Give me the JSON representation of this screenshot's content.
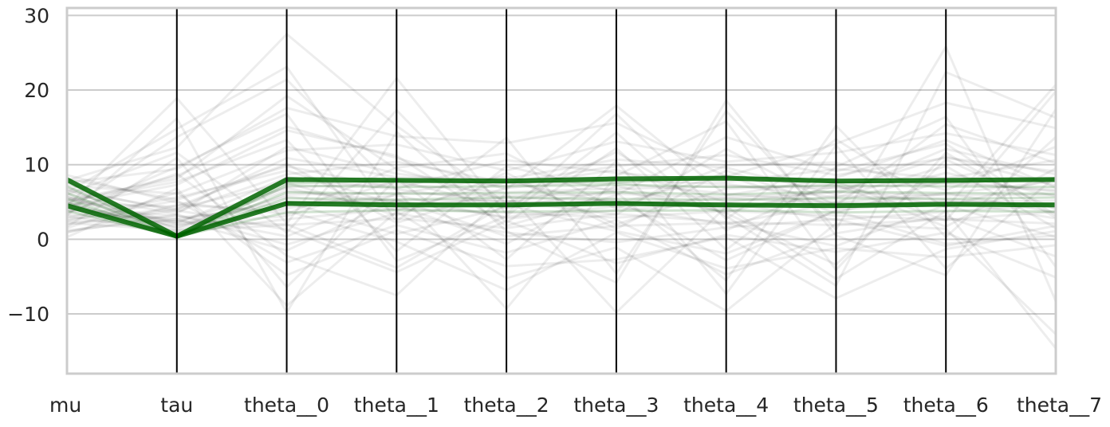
{
  "chart_data": {
    "type": "line",
    "subtype": "parallel-coordinates",
    "title": "",
    "xlabel": "",
    "ylabel": "",
    "categories": [
      "mu",
      "tau",
      "theta__0",
      "theta__1",
      "theta__2",
      "theta__3",
      "theta__4",
      "theta__5",
      "theta__6",
      "theta__7"
    ],
    "ylim": [
      -18,
      31
    ],
    "yticks": [
      -10,
      0,
      10,
      20,
      30
    ],
    "ytick_labels": [
      "−10",
      "0",
      "10",
      "20",
      "30"
    ],
    "grid": true,
    "legend": "none",
    "colors": {
      "background_lines": "#000000",
      "highlight_lines": "#006400",
      "grid": "#cccccc",
      "axis_lines": "#000000",
      "frame": "#cccccc",
      "text": "#262626"
    },
    "background_series": {
      "description": "many faint black traces",
      "values": [
        [
          4.2,
          1.8,
          6.5,
          5.1,
          3.0,
          4.4,
          2.0,
          4.9,
          6.2,
          3.6
        ],
        [
          6.1,
          3.4,
          12.4,
          8.8,
          7.1,
          9.3,
          5.0,
          6.4,
          11.1,
          7.2
        ],
        [
          2.5,
          5.2,
          -3.1,
          1.9,
          -1.8,
          2.6,
          -4.7,
          0.8,
          3.1,
          -2.3
        ],
        [
          5.3,
          8.1,
          19.2,
          9.4,
          5.2,
          3.3,
          12.1,
          4.5,
          15.4,
          10.2
        ],
        [
          3.1,
          0.9,
          2.7,
          4.1,
          3.6,
          2.9,
          3.8,
          3.2,
          2.6,
          3.7
        ],
        [
          7.9,
          12.3,
          27.5,
          15.2,
          4.8,
          11.7,
          3.1,
          -6.2,
          22.4,
          16.3
        ],
        [
          1.2,
          2.7,
          -1.5,
          5.3,
          0.4,
          1.8,
          2.2,
          -0.9,
          4.6,
          0.3
        ],
        [
          4.8,
          4.4,
          10.1,
          2.2,
          6.9,
          8.0,
          7.4,
          5.6,
          9.8,
          1.5
        ],
        [
          0.3,
          6.8,
          -8.9,
          3.7,
          -5.2,
          -1.1,
          -9.6,
          2.1,
          1.4,
          -12.7
        ],
        [
          5.6,
          2.1,
          8.3,
          6.7,
          4.9,
          7.6,
          6.1,
          5.0,
          8.9,
          5.8
        ],
        [
          3.4,
          9.7,
          16.8,
          -2.9,
          3.1,
          14.3,
          1.2,
          7.7,
          2.5,
          19.8
        ],
        [
          6.7,
          1.4,
          7.0,
          7.4,
          6.3,
          6.8,
          7.1,
          6.9,
          7.5,
          6.6
        ],
        [
          2.0,
          3.9,
          1.3,
          -4.4,
          2.5,
          -3.2,
          0.6,
          -1.7,
          0.9,
          -5.1
        ],
        [
          4.5,
          7.3,
          14.6,
          11.2,
          1.8,
          5.9,
          13.7,
          9.1,
          12.8,
          3.2
        ],
        [
          8.6,
          4.9,
          3.4,
          9.6,
          11.5,
          4.1,
          9.9,
          10.3,
          6.6,
          12.4
        ],
        [
          3.8,
          2.6,
          5.0,
          0.7,
          4.3,
          5.4,
          -2.8,
          3.9,
          5.2,
          2.8
        ],
        [
          1.7,
          10.9,
          -6.4,
          8.1,
          -2.7,
          10.5,
          -7.3,
          12.6,
          -3.9,
          8.4
        ],
        [
          5.0,
          0.7,
          4.9,
          5.3,
          5.1,
          4.7,
          5.5,
          4.8,
          5.0,
          5.2
        ],
        [
          6.3,
          14.8,
          23.1,
          2.4,
          13.6,
          -4.6,
          17.2,
          1.3,
          25.8,
          -8.3
        ],
        [
          2.9,
          5.6,
          9.2,
          4.6,
          -0.6,
          7.2,
          3.5,
          -3.4,
          10.7,
          4.0
        ],
        [
          4.0,
          3.2,
          0.4,
          6.1,
          8.4,
          2.0,
          6.8,
          7.3,
          1.7,
          9.5
        ],
        [
          7.2,
          6.1,
          11.9,
          12.7,
          9.2,
          13.1,
          10.4,
          11.6,
          14.2,
          11.3
        ],
        [
          3.6,
          8.8,
          -2.2,
          -7.5,
          6.2,
          -9.8,
          4.4,
          -5.3,
          3.8,
          -14.6
        ],
        [
          5.8,
          2.3,
          6.9,
          3.9,
          7.7,
          4.8,
          8.6,
          3.5,
          7.9,
          6.4
        ],
        [
          0.9,
          4.6,
          3.8,
          -0.3,
          -6.8,
          0.9,
          -3.9,
          -1.2,
          -2.4,
          -0.8
        ],
        [
          4.4,
          18.9,
          2.1,
          21.6,
          3.4,
          16.8,
          2.7,
          13.4,
          4.2,
          20.7
        ],
        [
          6.9,
          3.7,
          8.7,
          10.4,
          7.6,
          9.8,
          11.3,
          8.6,
          10.9,
          9.1
        ],
        [
          2.2,
          1.2,
          1.9,
          2.8,
          1.5,
          3.4,
          2.3,
          1.9,
          2.7,
          2.1
        ],
        [
          5.1,
          7.7,
          13.3,
          -1.6,
          9.8,
          6.3,
          -5.5,
          15.2,
          0.3,
          13.7
        ],
        [
          3.3,
          2.9,
          4.2,
          5.9,
          2.8,
          3.9,
          4.9,
          2.6,
          3.7,
          4.6
        ],
        [
          7.6,
          9.4,
          17.6,
          13.8,
          12.9,
          15.6,
          8.4,
          12.8,
          18.3,
          14.9
        ],
        [
          1.5,
          6.3,
          -4.8,
          1.2,
          -3.6,
          -2.7,
          0.3,
          -7.9,
          -1.3,
          1.1
        ],
        [
          4.7,
          1.6,
          5.7,
          4.4,
          5.6,
          5.1,
          4.2,
          5.8,
          5.4,
          4.3
        ],
        [
          6.0,
          11.6,
          0.9,
          17.3,
          2.2,
          12.2,
          -1.4,
          9.7,
          16.4,
          -3.7
        ],
        [
          2.7,
          4.1,
          7.6,
          3.2,
          8.9,
          1.4,
          9.2,
          4.3,
          6.1,
          7.8
        ],
        [
          5.4,
          2.0,
          3.1,
          7.9,
          4.2,
          6.6,
          3.6,
          7.1,
          4.4,
          8.2
        ],
        [
          3.9,
          13.7,
          21.4,
          6.6,
          -9.3,
          8.5,
          15.8,
          -4.1,
          11.6,
          2.9
        ],
        [
          8.1,
          5.3,
          9.8,
          6.8,
          10.6,
          8.9,
          7.7,
          9.4,
          8.2,
          10.6
        ],
        [
          1.0,
          3.3,
          -0.7,
          3.5,
          0.9,
          -0.4,
          1.6,
          2.7,
          -0.9,
          1.8
        ],
        [
          4.9,
          8.5,
          15.1,
          10.9,
          6.7,
          17.9,
          5.9,
          8.2,
          13.3,
          6.9
        ],
        [
          2.4,
          2.4,
          2.0,
          -3.8,
          4.7,
          1.1,
          -1.9,
          3.8,
          -0.6,
          0.5
        ],
        [
          6.5,
          4.0,
          10.9,
          8.3,
          8.1,
          10.7,
          9.6,
          6.0,
          12.1,
          8.7
        ],
        [
          3.2,
          16.2,
          -9.8,
          14.4,
          1.1,
          -5.8,
          18.6,
          0.5,
          -4.8,
          17.4
        ],
        [
          5.7,
          1.1,
          6.0,
          6.2,
          5.8,
          6.1,
          5.6,
          6.3,
          5.9,
          6.0
        ]
      ]
    },
    "highlight_series": {
      "description": "thick green traces (divergent draws)",
      "values": [
        [
          8.0,
          0.4,
          8.0,
          7.9,
          7.8,
          8.1,
          8.2,
          7.8,
          7.9,
          8.0
        ],
        [
          4.5,
          0.4,
          4.8,
          4.6,
          4.6,
          4.8,
          4.6,
          4.5,
          4.7,
          4.6
        ],
        [
          7.7,
          0.35,
          7.5,
          7.8,
          7.7,
          7.6,
          8.4,
          7.7,
          7.6,
          8.1
        ],
        [
          4.9,
          0.3,
          5.0,
          4.9,
          4.5,
          5.0,
          4.5,
          4.8,
          4.5,
          4.8
        ],
        [
          6.2,
          0.45,
          6.3,
          6.1,
          6.2,
          6.3,
          6.0,
          6.4,
          6.2,
          6.1
        ],
        [
          3.8,
          0.35,
          3.6,
          3.9,
          3.7,
          3.8,
          3.9,
          3.6,
          3.8,
          3.7
        ],
        [
          5.4,
          0.4,
          5.5,
          5.3,
          5.6,
          5.4,
          5.3,
          5.5,
          5.4,
          5.6
        ],
        [
          7.1,
          0.3,
          7.2,
          7.0,
          7.1,
          7.3,
          7.0,
          7.2,
          7.1,
          7.0
        ]
      ]
    }
  }
}
